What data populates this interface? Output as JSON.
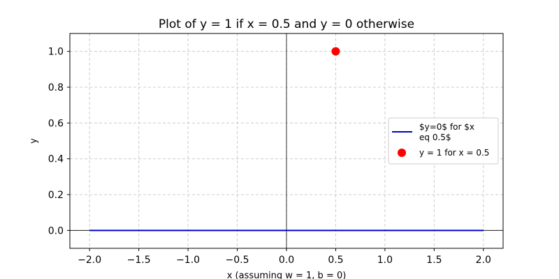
{
  "chart_data": {
    "type": "line",
    "title": "Plot of y = 1 if x = 0.5 and y = 0 otherwise",
    "xlabel": "x (assuming w = 1, b = 0)",
    "ylabel": "y",
    "xlim": [
      -2.2,
      2.2
    ],
    "ylim": [
      -0.1,
      1.1
    ],
    "xticks": [
      -2.0,
      -1.5,
      -1.0,
      -0.5,
      0.0,
      0.5,
      1.0,
      1.5,
      2.0
    ],
    "xtick_labels": [
      "−2.0",
      "−1.5",
      "−1.0",
      "−0.5",
      "0.0",
      "0.5",
      "1.0",
      "1.5",
      "2.0"
    ],
    "yticks": [
      0.0,
      0.2,
      0.4,
      0.6,
      0.8,
      1.0
    ],
    "ytick_labels": [
      "0.0",
      "0.2",
      "0.4",
      "0.6",
      "0.8",
      "1.0"
    ],
    "grid": true,
    "legend_position": "center-right",
    "series": [
      {
        "name": "$y=0$ for $x\neq 0.5$",
        "kind": "line",
        "color": "#0000cc",
        "x": [
          -2.0,
          2.0
        ],
        "y": [
          0,
          0
        ]
      },
      {
        "name": "y = 1 for x = 0.5",
        "kind": "scatter",
        "color": "#ff0000",
        "x": [
          0.5
        ],
        "y": [
          1
        ]
      }
    ],
    "legend": {
      "line_label_1": "$y=0$ for $x",
      "line_label_2": "eq 0.5$",
      "point_label": "y = 1 for x = 0.5"
    }
  }
}
